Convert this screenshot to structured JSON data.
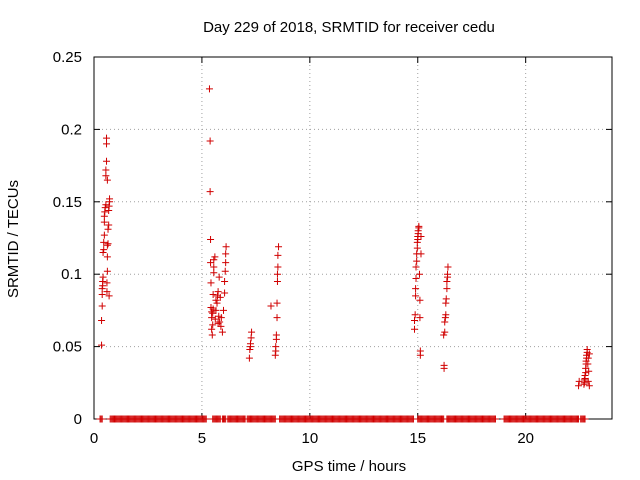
{
  "chart_data": {
    "type": "scatter",
    "title": "Day 229 of 2018, SRMTID for receiver cedu",
    "xlabel": "GPS time / hours",
    "ylabel": "SRMTID / TECUs",
    "xlim": [
      0,
      24
    ],
    "ylim": [
      0,
      0.25
    ],
    "xticks": [
      0,
      5,
      10,
      15,
      20
    ],
    "xtick_labels": [
      "0",
      "5",
      "10",
      "15",
      "20"
    ],
    "yticks": [
      0,
      0.05,
      0.1,
      0.15,
      0.2,
      0.25
    ],
    "ytick_labels": [
      "0",
      "0.05",
      "0.1",
      "0.15",
      "0.2",
      "0.25"
    ],
    "grid": true,
    "marker": "+",
    "color": "#d00000",
    "series": [
      {
        "name": "SRMTID",
        "points": [
          [
            0.35,
            0.051
          ],
          [
            0.35,
            0.068
          ],
          [
            0.38,
            0.078
          ],
          [
            0.38,
            0.086
          ],
          [
            0.38,
            0.09
          ],
          [
            0.4,
            0.092
          ],
          [
            0.4,
            0.095
          ],
          [
            0.42,
            0.098
          ],
          [
            0.42,
            0.115
          ],
          [
            0.45,
            0.117
          ],
          [
            0.45,
            0.122
          ],
          [
            0.48,
            0.127
          ],
          [
            0.48,
            0.136
          ],
          [
            0.48,
            0.14
          ],
          [
            0.5,
            0.143
          ],
          [
            0.52,
            0.146
          ],
          [
            0.55,
            0.148
          ],
          [
            0.55,
            0.168
          ],
          [
            0.55,
            0.172
          ],
          [
            0.58,
            0.178
          ],
          [
            0.58,
            0.19
          ],
          [
            0.58,
            0.194
          ],
          [
            0.6,
            0.088
          ],
          [
            0.6,
            0.094
          ],
          [
            0.62,
            0.102
          ],
          [
            0.62,
            0.112
          ],
          [
            0.62,
            0.12
          ],
          [
            0.65,
            0.121
          ],
          [
            0.65,
            0.131
          ],
          [
            0.68,
            0.134
          ],
          [
            0.68,
            0.144
          ],
          [
            0.7,
            0.147
          ],
          [
            0.72,
            0.15
          ],
          [
            0.72,
            0.152
          ],
          [
            0.7,
            0.085
          ],
          [
            0.62,
            0.165
          ],
          [
            5.35,
            0.228
          ],
          [
            5.38,
            0.192
          ],
          [
            5.38,
            0.157
          ],
          [
            5.4,
            0.124
          ],
          [
            5.4,
            0.108
          ],
          [
            5.42,
            0.094
          ],
          [
            5.42,
            0.077
          ],
          [
            5.45,
            0.074
          ],
          [
            5.45,
            0.07
          ],
          [
            5.45,
            0.062
          ],
          [
            5.48,
            0.058
          ],
          [
            5.5,
            0.065
          ],
          [
            5.5,
            0.073
          ],
          [
            5.52,
            0.076
          ],
          [
            5.52,
            0.086
          ],
          [
            5.55,
            0.101
          ],
          [
            5.55,
            0.105
          ],
          [
            5.55,
            0.11
          ],
          [
            5.6,
            0.112
          ],
          [
            5.62,
            0.069
          ],
          [
            5.65,
            0.075
          ],
          [
            5.7,
            0.08
          ],
          [
            5.72,
            0.085
          ],
          [
            5.75,
            0.088
          ],
          [
            5.78,
            0.071
          ],
          [
            5.8,
            0.098
          ],
          [
            5.82,
            0.067
          ],
          [
            5.85,
            0.084
          ],
          [
            5.88,
            0.064
          ],
          [
            5.9,
            0.07
          ],
          [
            5.95,
            0.06
          ],
          [
            6.0,
            0.075
          ],
          [
            6.05,
            0.087
          ],
          [
            6.05,
            0.095
          ],
          [
            6.08,
            0.102
          ],
          [
            6.1,
            0.108
          ],
          [
            6.1,
            0.114
          ],
          [
            6.12,
            0.119
          ],
          [
            5.65,
            0.082
          ],
          [
            5.75,
            0.066
          ],
          [
            7.2,
            0.042
          ],
          [
            7.22,
            0.048
          ],
          [
            7.25,
            0.05
          ],
          [
            7.25,
            0.052
          ],
          [
            7.28,
            0.056
          ],
          [
            7.3,
            0.06
          ],
          [
            8.2,
            0.078
          ],
          [
            8.4,
            0.044
          ],
          [
            8.42,
            0.047
          ],
          [
            8.42,
            0.05
          ],
          [
            8.45,
            0.055
          ],
          [
            8.45,
            0.058
          ],
          [
            8.48,
            0.07
          ],
          [
            8.48,
            0.08
          ],
          [
            8.5,
            0.095
          ],
          [
            8.5,
            0.1
          ],
          [
            8.52,
            0.105
          ],
          [
            8.52,
            0.113
          ],
          [
            8.55,
            0.119
          ],
          [
            14.85,
            0.062
          ],
          [
            14.85,
            0.068
          ],
          [
            14.88,
            0.072
          ],
          [
            14.9,
            0.085
          ],
          [
            14.9,
            0.09
          ],
          [
            14.92,
            0.097
          ],
          [
            14.92,
            0.105
          ],
          [
            14.95,
            0.109
          ],
          [
            14.95,
            0.114
          ],
          [
            14.98,
            0.118
          ],
          [
            14.98,
            0.122
          ],
          [
            15.0,
            0.124
          ],
          [
            15.0,
            0.126
          ],
          [
            15.02,
            0.128
          ],
          [
            15.02,
            0.13
          ],
          [
            15.05,
            0.132
          ],
          [
            15.05,
            0.133
          ],
          [
            15.08,
            0.1
          ],
          [
            15.1,
            0.082
          ],
          [
            15.1,
            0.07
          ],
          [
            15.12,
            0.047
          ],
          [
            15.12,
            0.044
          ],
          [
            15.15,
            0.114
          ],
          [
            15.15,
            0.126
          ],
          [
            16.2,
            0.058
          ],
          [
            16.22,
            0.035
          ],
          [
            16.22,
            0.037
          ],
          [
            16.25,
            0.06
          ],
          [
            16.25,
            0.067
          ],
          [
            16.28,
            0.07
          ],
          [
            16.3,
            0.072
          ],
          [
            16.3,
            0.08
          ],
          [
            16.32,
            0.083
          ],
          [
            16.35,
            0.09
          ],
          [
            16.35,
            0.095
          ],
          [
            16.38,
            0.098
          ],
          [
            16.38,
            0.1
          ],
          [
            16.4,
            0.105
          ],
          [
            22.45,
            0.023
          ],
          [
            22.48,
            0.026
          ],
          [
            22.7,
            0.024
          ],
          [
            22.72,
            0.025
          ],
          [
            22.72,
            0.027
          ],
          [
            22.75,
            0.028
          ],
          [
            22.75,
            0.03
          ],
          [
            22.78,
            0.032
          ],
          [
            22.78,
            0.035
          ],
          [
            22.8,
            0.038
          ],
          [
            22.8,
            0.04
          ],
          [
            22.82,
            0.042
          ],
          [
            22.82,
            0.044
          ],
          [
            22.85,
            0.046
          ],
          [
            22.85,
            0.048
          ],
          [
            22.88,
            0.038
          ],
          [
            22.9,
            0.042
          ],
          [
            22.9,
            0.026
          ],
          [
            22.92,
            0.033
          ],
          [
            22.95,
            0.045
          ],
          [
            22.95,
            0.023
          ]
        ],
        "zero_segments": [
          [
            0.28,
            0.4
          ],
          [
            0.75,
            5.2
          ],
          [
            5.5,
            5.85
          ],
          [
            5.95,
            6.1
          ],
          [
            6.2,
            7.0
          ],
          [
            7.1,
            8.2
          ],
          [
            8.25,
            8.4
          ],
          [
            8.6,
            14.8
          ],
          [
            15.0,
            16.2
          ],
          [
            16.35,
            18.6
          ],
          [
            19.0,
            22.45
          ],
          [
            22.55,
            22.75
          ]
        ]
      }
    ]
  }
}
